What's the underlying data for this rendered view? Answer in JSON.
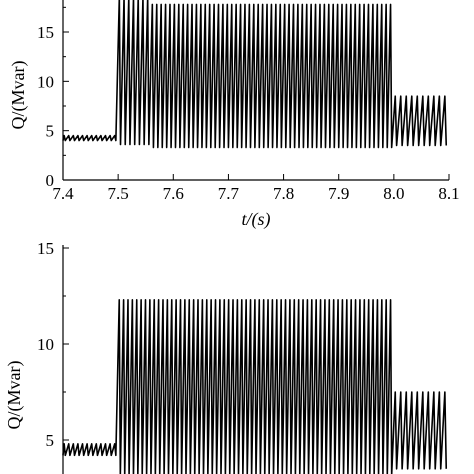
{
  "chart_data": [
    {
      "type": "line",
      "title": "",
      "xlabel": "t/(s)",
      "ylabel": "Q/(Mvar)",
      "xlim": [
        7.4,
        8.1
      ],
      "ylim": [
        0,
        18.5
      ],
      "x_ticks": [
        "7.4",
        "7.5",
        "7.6",
        "7.7",
        "7.8",
        "7.9",
        "8.0",
        "8.1"
      ],
      "y_ticks": [
        "0",
        "5",
        "10",
        "15"
      ],
      "grid": false,
      "series": [
        {
          "segments": [
            {
              "x_start": 7.4,
              "x_end": 7.5,
              "min": 4.0,
              "max": 4.5,
              "cycle_s": 0.008
            },
            {
              "x_start": 7.5,
              "x_end": 7.56,
              "min": 3.6,
              "max": 18.5,
              "cycle_s": 0.008
            },
            {
              "x_start": 7.56,
              "x_end": 8.0,
              "min": 3.3,
              "max": 17.8,
              "cycle_s": 0.008
            },
            {
              "x_start": 8.0,
              "x_end": 8.1,
              "min": 3.5,
              "max": 8.5,
              "cycle_s": 0.01
            }
          ]
        }
      ]
    },
    {
      "type": "line",
      "title": "",
      "xlabel": "",
      "ylabel": "Q/(Mvar)",
      "xlim": [
        7.4,
        8.1
      ],
      "ylim": [
        3,
        15
      ],
      "y_ticks": [
        "5",
        "10",
        "15"
      ],
      "grid": false,
      "series": [
        {
          "segments": [
            {
              "x_start": 7.4,
              "x_end": 7.5,
              "min": 4.2,
              "max": 4.8,
              "cycle_s": 0.008
            },
            {
              "x_start": 7.5,
              "x_end": 8.0,
              "min": 3.2,
              "max": 12.3,
              "cycle_s": 0.008
            },
            {
              "x_start": 8.0,
              "x_end": 8.1,
              "min": 3.5,
              "max": 7.5,
              "cycle_s": 0.01
            }
          ]
        }
      ]
    }
  ]
}
